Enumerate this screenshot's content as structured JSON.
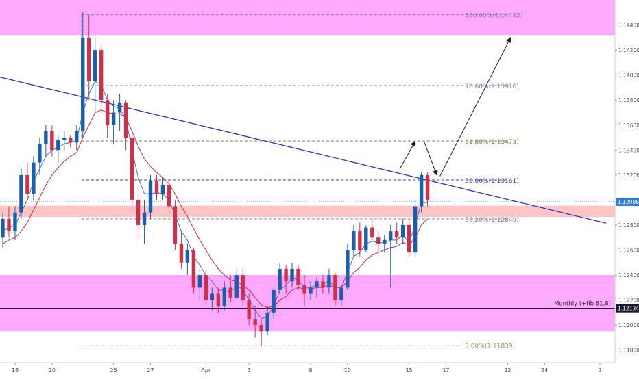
{
  "chart_data": {
    "type": "candlestick",
    "instrument_note": "EUR/USD-style price chart with Fibonacci retracement and zones",
    "ylim": [
      1.117,
      1.146
    ],
    "y_ticks": [
      "1.14400",
      "1.14200",
      "1.14000",
      "1.13800",
      "1.13600",
      "1.13400",
      "1.13200",
      "1.12800",
      "1.12600",
      "1.12400",
      "1.12200",
      "1.12000",
      "1.11800"
    ],
    "y_tick_values": [
      1.144,
      1.142,
      1.14,
      1.138,
      1.136,
      1.134,
      1.132,
      1.128,
      1.126,
      1.124,
      1.122,
      1.12,
      1.118
    ],
    "x_ticks": [
      "18",
      "20",
      "25",
      "27",
      "Apr",
      "3",
      "8",
      "10",
      "15",
      "17",
      "22",
      "24",
      "2"
    ],
    "x_tick_index": [
      2,
      8,
      18,
      24,
      33,
      40,
      50,
      56,
      66,
      72,
      82,
      88,
      97
    ],
    "x_range": [
      0,
      99
    ],
    "price_label": "1.12986",
    "price_value": 1.12986,
    "monthly_label": "Monthly (+fib 61,8)",
    "monthly_value": 1.12134,
    "fib_levels": [
      {
        "label": "100.00%(1.14482)",
        "value": 1.14482,
        "color": "#8a7aa8"
      },
      {
        "label": "78.60%(1.13916)",
        "value": 1.13916,
        "color": "#8a7aa8"
      },
      {
        "label": "61.80%(1.13473)",
        "value": 1.13473,
        "color": "#6f8a3a"
      },
      {
        "label": "50.00%(1.13161)",
        "value": 1.13161,
        "color": "#3a3ad0"
      },
      {
        "label": "38.20%(1.12849)",
        "value": 1.12849,
        "color": "#8a7aa8"
      },
      {
        "label": "0.00%(1.11839)",
        "value": 1.11839,
        "color": "#8a9a5a"
      }
    ],
    "zones": [
      {
        "name": "upper-resistance",
        "from": 1.1432,
        "to": 1.146,
        "color": "#ffa8ff"
      },
      {
        "name": "mid-support",
        "from": 1.12865,
        "to": 1.12955,
        "color": "#ffc4c4"
      },
      {
        "name": "lower-support",
        "from": 1.1195,
        "to": 1.124,
        "color": "#ffa8ff"
      }
    ],
    "trendline": {
      "x1": -1,
      "y1": 1.1399,
      "x2": 98,
      "y2": 1.12815,
      "color": "#3030c8"
    },
    "projection_arrows": [
      [
        [
          64.5,
          1.1325
        ],
        [
          67,
          1.1347
        ]
      ],
      [
        [
          68.5,
          1.1346
        ],
        [
          70.5,
          1.132
        ]
      ],
      [
        [
          71,
          1.1319
        ],
        [
          82.5,
          1.143
        ]
      ]
    ],
    "candles": [
      [
        1.127,
        1.129,
        1.1262,
        1.1285
      ],
      [
        1.1285,
        1.1295,
        1.127,
        1.1275
      ],
      [
        1.1275,
        1.1295,
        1.1268,
        1.129
      ],
      [
        1.129,
        1.1325,
        1.1285,
        1.132
      ],
      [
        1.132,
        1.133,
        1.13,
        1.1305
      ],
      [
        1.1305,
        1.1335,
        1.13,
        1.133
      ],
      [
        1.133,
        1.135,
        1.132,
        1.1345
      ],
      [
        1.1345,
        1.136,
        1.1335,
        1.1355
      ],
      [
        1.1355,
        1.136,
        1.1335,
        1.134
      ],
      [
        1.134,
        1.1352,
        1.133,
        1.1348
      ],
      [
        1.1348,
        1.1355,
        1.134,
        1.135
      ],
      [
        1.135,
        1.1352,
        1.1342,
        1.1346
      ],
      [
        1.1346,
        1.136,
        1.134,
        1.1355
      ],
      [
        1.1355,
        1.145,
        1.135,
        1.143
      ],
      [
        1.143,
        1.1448,
        1.138,
        1.1395
      ],
      [
        1.1395,
        1.143,
        1.137,
        1.142
      ],
      [
        1.142,
        1.1425,
        1.137,
        1.138
      ],
      [
        1.138,
        1.1385,
        1.135,
        1.136
      ],
      [
        1.136,
        1.138,
        1.1345,
        1.137
      ],
      [
        1.137,
        1.1385,
        1.1355,
        1.1378
      ],
      [
        1.1378,
        1.138,
        1.134,
        1.135
      ],
      [
        1.135,
        1.1355,
        1.129,
        1.13
      ],
      [
        1.13,
        1.131,
        1.127,
        1.128
      ],
      [
        1.128,
        1.13,
        1.1265,
        1.129
      ],
      [
        1.129,
        1.132,
        1.1285,
        1.1315
      ],
      [
        1.1315,
        1.132,
        1.13,
        1.1305
      ],
      [
        1.1305,
        1.1318,
        1.13,
        1.1312
      ],
      [
        1.1312,
        1.1315,
        1.129,
        1.1295
      ],
      [
        1.1295,
        1.13,
        1.126,
        1.1265
      ],
      [
        1.1265,
        1.1275,
        1.1245,
        1.125
      ],
      [
        1.125,
        1.1265,
        1.124,
        1.126
      ],
      [
        1.126,
        1.1262,
        1.1225,
        1.123
      ],
      [
        1.123,
        1.1245,
        1.122,
        1.124
      ],
      [
        1.124,
        1.1245,
        1.1215,
        1.122
      ],
      [
        1.122,
        1.123,
        1.1212,
        1.1225
      ],
      [
        1.1225,
        1.123,
        1.121,
        1.1215
      ],
      [
        1.1215,
        1.1235,
        1.1212,
        1.123
      ],
      [
        1.123,
        1.124,
        1.1218,
        1.1222
      ],
      [
        1.1222,
        1.1245,
        1.122,
        1.124
      ],
      [
        1.124,
        1.1245,
        1.1215,
        1.122
      ],
      [
        1.122,
        1.1225,
        1.12,
        1.1205
      ],
      [
        1.1205,
        1.1215,
        1.119,
        1.12
      ],
      [
        1.12,
        1.1205,
        1.1183,
        1.1195
      ],
      [
        1.1195,
        1.1215,
        1.1192,
        1.121
      ],
      [
        1.121,
        1.123,
        1.1205,
        1.1228
      ],
      [
        1.1228,
        1.125,
        1.1225,
        1.1245
      ],
      [
        1.1245,
        1.1248,
        1.1225,
        1.1235
      ],
      [
        1.1235,
        1.125,
        1.123,
        1.1245
      ],
      [
        1.1245,
        1.1248,
        1.1228,
        1.1232
      ],
      [
        1.1232,
        1.124,
        1.1215,
        1.1225
      ],
      [
        1.1225,
        1.1235,
        1.122,
        1.123
      ],
      [
        1.123,
        1.1238,
        1.1222,
        1.1235
      ],
      [
        1.1235,
        1.124,
        1.1225,
        1.123
      ],
      [
        1.123,
        1.1245,
        1.1225,
        1.124
      ],
      [
        1.124,
        1.1242,
        1.1215,
        1.122
      ],
      [
        1.122,
        1.1232,
        1.1215,
        1.123
      ],
      [
        1.123,
        1.1265,
        1.1228,
        1.126
      ],
      [
        1.126,
        1.128,
        1.1255,
        1.1275
      ],
      [
        1.1275,
        1.1282,
        1.1255,
        1.126
      ],
      [
        1.126,
        1.128,
        1.1258,
        1.1278
      ],
      [
        1.1278,
        1.1285,
        1.1268,
        1.127
      ],
      [
        1.127,
        1.1275,
        1.1258,
        1.1265
      ],
      [
        1.1265,
        1.1272,
        1.1258,
        1.1268
      ],
      [
        1.1268,
        1.128,
        1.123,
        1.1275
      ],
      [
        1.1275,
        1.1282,
        1.1265,
        1.127
      ],
      [
        1.127,
        1.1285,
        1.1265,
        1.128
      ],
      [
        1.128,
        1.1285,
        1.1255,
        1.1258
      ],
      [
        1.1258,
        1.13,
        1.1255,
        1.1295
      ],
      [
        1.1295,
        1.1322,
        1.129,
        1.132
      ],
      [
        1.132,
        1.1322,
        1.1295,
        1.13
      ]
    ],
    "ma_blue": [
      1.1275,
      1.1278,
      1.128,
      1.129,
      1.13,
      1.1315,
      1.1325,
      1.1335,
      1.134,
      1.1342,
      1.1345,
      1.1346,
      1.1348,
      1.137,
      1.1385,
      1.1395,
      1.1392,
      1.138,
      1.1375,
      1.1373,
      1.1365,
      1.134,
      1.1318,
      1.1305,
      1.1305,
      1.1306,
      1.1305,
      1.13,
      1.1288,
      1.1275,
      1.1268,
      1.1255,
      1.1248,
      1.124,
      1.1235,
      1.1228,
      1.1228,
      1.1226,
      1.1232,
      1.1228,
      1.122,
      1.1212,
      1.1205,
      1.1207,
      1.1215,
      1.1228,
      1.1232,
      1.1238,
      1.1236,
      1.123,
      1.123,
      1.1232,
      1.1232,
      1.1236,
      1.123,
      1.123,
      1.1242,
      1.1255,
      1.1258,
      1.1265,
      1.1267,
      1.1266,
      1.1266,
      1.1268,
      1.1268,
      1.1272,
      1.1266,
      1.128,
      1.1298,
      1.1298
    ],
    "ma_red": [
      1.1265,
      1.1268,
      1.127,
      1.1275,
      1.1282,
      1.1292,
      1.1302,
      1.1312,
      1.132,
      1.1326,
      1.1331,
      1.1335,
      1.1338,
      1.135,
      1.136,
      1.137,
      1.1372,
      1.137,
      1.1369,
      1.1369,
      1.1366,
      1.1355,
      1.1343,
      1.1333,
      1.1327,
      1.1322,
      1.1318,
      1.1313,
      1.1305,
      1.1295,
      1.1287,
      1.1277,
      1.1268,
      1.126,
      1.1252,
      1.1245,
      1.124,
      1.1236,
      1.1235,
      1.1232,
      1.1228,
      1.1222,
      1.1216,
      1.1214,
      1.1215,
      1.122,
      1.1223,
      1.1228,
      1.123,
      1.1229,
      1.1229,
      1.123,
      1.123,
      1.1232,
      1.123,
      1.123,
      1.1235,
      1.1242,
      1.1246,
      1.1252,
      1.1256,
      1.1258,
      1.126,
      1.1262,
      1.1263,
      1.1266,
      1.1264,
      1.127,
      1.128,
      1.1285
    ]
  }
}
